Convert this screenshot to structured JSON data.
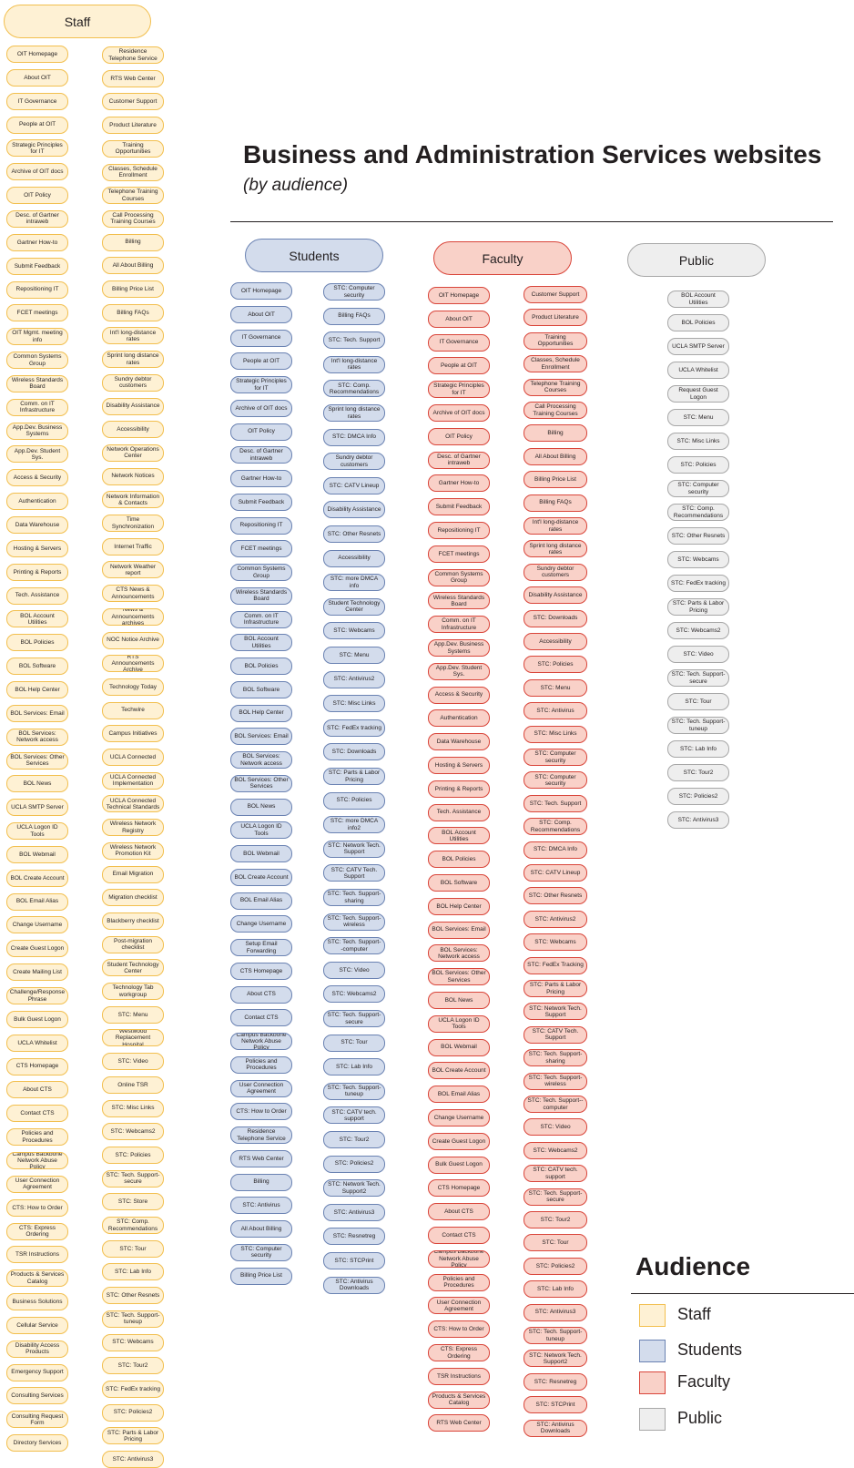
{
  "title": "Business and Administration Services websites",
  "subtitle": "(by audience)",
  "headers": {
    "staff": "Staff",
    "students": "Students",
    "faculty": "Faculty",
    "public": "Public"
  },
  "staff_col1": [
    "OIT Homepage",
    "About OIT",
    "IT Governance",
    "People at OIT",
    "Strategic Principles for IT",
    "Archive of OIT docs",
    "OIT Policy",
    "Desc. of Gartner intraweb",
    "Gartner How-to",
    "Submit Feedback",
    "Repositioning IT",
    "FCET meetings",
    "OIT Mgmt. meeting info",
    "Common Systems Group",
    "Wireless Standards Board",
    "Comm. on IT Infrastructure",
    "App.Dev. Business Systems",
    "App.Dev. Student Sys.",
    "Access & Security",
    "Authentication",
    "Data Warehouse",
    "Hosting & Servers",
    "Printing & Reports",
    "Tech. Assistance",
    "BOL Account Utilities",
    "BOL Policies",
    "BOL Software",
    "BOL Help Center",
    "BOL Services: Email",
    "BOL Services: Network access",
    "BOL Services: Other Services",
    "BOL News",
    "UCLA SMTP Server",
    "UCLA Logon ID Tools",
    "BOL Webmail",
    "BOL Create Account",
    "BOL Email Alias",
    "Change Username",
    "Create Guest Logon",
    "Create Mailing List",
    "Challenge/Response Phrase",
    "Bulk Guest Logon",
    "UCLA Whitelist",
    "CTS Homepage",
    "About CTS",
    "Contact CTS",
    "Policies and Procedures",
    "Campus Backbone Network Abuse Policy",
    "User Connection Agreement",
    "CTS: How to Order",
    "CTS: Express Ordering",
    "TSR Instructions",
    "Products & Services Catalog",
    "Business Solutions",
    "Cellular Service",
    "Disability Access Products",
    "Emergency Support",
    "Consulting Services",
    "Consulting Request Form",
    "Directory Services"
  ],
  "staff_col2": [
    "Residence Telephone Service",
    "RTS Web Center",
    "Customer Support",
    "Product Literature",
    "Training Opportunities",
    "Classes, Schedule Enrollment",
    "Telephone Training Courses",
    "Call Processing Training Courses",
    "Billing",
    "All About Billing",
    "Billing Price List",
    "Billing FAQs",
    "Int'l long-distance rates",
    "Sprint long distance rates",
    "Sundry debtor customers",
    "Disability Assistance",
    "Accessibility",
    "Network Operations Center",
    "Network Notices",
    "Network Information & Contacts",
    "Time Synchronization",
    "Internet Traffic",
    "Network Weather report",
    "CTS News & Announcements",
    "News & Announcements archives",
    "NOC Notice Archive",
    "RTS Announcements Archive",
    "Technology Today",
    "Techwire",
    "Campus Initiatives",
    "UCLA Connected",
    "UCLA Connected Implementation",
    "UCLA Connected Technical Standards",
    "Wireless Network Registry",
    "Wireless Network Promotion Kit",
    "Email Migration",
    "Migration checklist",
    "Blackberry checklist",
    "Post-migration checklist",
    "Student Technology Center",
    "Technology Tab workgroup",
    "STC: Menu",
    "Westwood Replacement Hospital",
    "STC: Video",
    "Online TSR",
    "STC: Misc Links",
    "STC: Webcams2",
    "STC: Policies",
    "STC: Tech. Support-secure",
    "STC: Store",
    "STC: Comp. Recommendations",
    "STC: Tour",
    "STC: Lab Info",
    "STC: Other Resnets",
    "STC: Tech. Support-tuneup",
    "STC: Webcams",
    "STC: Tour2",
    "STC: FedEx tracking",
    "STC: Policies2",
    "STC: Parts & Labor Pricing",
    "STC: Antivirus3"
  ],
  "students_col1": [
    "OIT Homepage",
    "About OIT",
    "IT Governance",
    "People at OIT",
    "Strategic Principles for IT",
    "Archive of OIT docs",
    "OIT Policy",
    "Desc. of Gartner intraweb",
    "Gartner How-to",
    "Submit Feedback",
    "Repositioning IT",
    "FCET meetings",
    "Common Systems Group",
    "Wireless Standards Board",
    "Comm. on IT Infrastructure",
    "BOL Account Utilities",
    "BOL Policies",
    "BOL Software",
    "BOL Help Center",
    "BOL Services: Email",
    "BOL Services: Network access",
    "BOL Services: Other Services",
    "BOL News",
    "UCLA Logon ID Tools",
    "BOL Webmail",
    "BOL Create Account",
    "BOL Email Alias",
    "Change Username",
    "Setup Email Forwarding",
    "CTS Homepage",
    "About CTS",
    "Contact CTS",
    "Campus Backbone Network Abuse Policy",
    "Policies and Procedures",
    "User Connection Agreement",
    "CTS: How to Order",
    "Residence Telephone Service",
    "RTS Web Center",
    "Billing",
    "STC: Antivirus",
    "All About Billing",
    "STC: Computer security",
    "Billing Price List"
  ],
  "students_col2": [
    "STC: Computer security",
    "Billing FAQs",
    "STC: Tech. Support",
    "Int'l long-distance rates",
    "STC: Comp. Recommendations",
    "Sprint long distance rates",
    "STC: DMCA Info",
    "Sundry debtor customers",
    "STC: CATV Lineup",
    "Disability Assistance",
    "STC: Other Resnets",
    "Accessibility",
    "STC: more DMCA info",
    "Student Technology Center",
    "STC: Webcams",
    "STC: Menu",
    "STC: Antivirus2",
    "STC: Misc Links",
    "STC: FedEx tracking",
    "STC: Downloads",
    "STC: Parts & Labor Pricing",
    "STC: Policies",
    "STC: more DMCA info2",
    "STC: Network Tech. Support",
    "STC: CATV Tech. Support",
    "STC: Tech. Support-sharing",
    "STC: Tech. Support-wireless",
    "STC: Tech. Support--computer",
    "STC: Video",
    "STC: Webcams2",
    "STC: Tech. Support-secure",
    "STC: Tour",
    "STC: Lab Info",
    "STC: Tech. Support-tuneup",
    "STC: CATV tech. support",
    "STC: Tour2",
    "STC: Policies2",
    "STC: Network Tech. Support2",
    "STC: Antivirus3",
    "STC: Resnetreg",
    "STC: STCPrint",
    "STC: Antivirus Downloads"
  ],
  "faculty_col1": [
    "OIT Homepage",
    "About OIT",
    "IT Governance",
    "People at OIT",
    "Strategic Principles for IT",
    "Archive of OIT docs",
    "OIT Policy",
    "Desc. of Gartner intraweb",
    "Gartner How-to",
    "Submit Feedback",
    "Repositioning IT",
    "FCET meetings",
    "Common Systems Group",
    "Wireless Standards Board",
    "Comm. on IT Infrastructure",
    "App.Dev. Business Systems",
    "App.Dev. Student Sys.",
    "Access & Security",
    "Authentication",
    "Data Warehouse",
    "Hosting & Servers",
    "Printing & Reports",
    "Tech. Assistance",
    "BOL Account Utilities",
    "BOL Policies",
    "BOL Software",
    "BOL Help Center",
    "BOL Services: Email",
    "BOL Services: Network access",
    "BOL Services: Other Services",
    "BOL News",
    "UCLA Logon ID Tools",
    "BOL Webmail",
    "BOL Create Account",
    "BOL Email Alias",
    "Change Username",
    "Create Guest Logon",
    "Bulk Guest Logon",
    "CTS Homepage",
    "About CTS",
    "Contact CTS",
    "Campus Backbone Network Abuse Policy",
    "Policies and Procedures",
    "User Connection Agreement",
    "CTS: How to Order",
    "CTS: Express Ordering",
    "TSR Instructions",
    "Products & Services Catalog",
    "RTS Web Center"
  ],
  "faculty_col2": [
    "Customer Support",
    "Product Literature",
    "Training Opportunities",
    "Classes, Schedule Enrollment",
    "Telephone Training Courses",
    "Call Processing Training Courses",
    "Billing",
    "All About Billing",
    "Billing Price List",
    "Billing FAQs",
    "Int'l long-distance rates",
    "Sprint long distance rates",
    "Sundry debtor customers",
    "Disability Assistance",
    "STC: Downloads",
    "Accessibility",
    "STC: Policies",
    "STC: Menu",
    "STC: Antivirus",
    "STC: Misc Links",
    "STC: Computer security",
    "STC: Computer security",
    "STC: Tech. Support",
    "STC: Comp. Recommendations",
    "STC: DMCA Info",
    "STC: CATV Lineup",
    "STC: Other Resnets",
    "STC: Antivirus2",
    "STC: Webcams",
    "STC: FedEx Tracking",
    "STC: Parts & Labor Pricing",
    "STC: Network Tech. Support",
    "STC: CATV Tech. Support",
    "STC: Tech. Support-sharing",
    "STC: Tech. Support-wireless",
    "STC: Tech. Support--computer",
    "STC: Video",
    "STC: Webcams2",
    "STC: CATV tech. support",
    "STC: Tech. Support-secure",
    "STC: Tour2",
    "STC: Tour",
    "STC: Policies2",
    "STC: Lab Info",
    "STC: Antivirus3",
    "STC: Tech. Support-tuneup",
    "STC: Network Tech. Support2",
    "STC: Resnetreg",
    "STC: STCPrint",
    "STC: Antivirus Downloads"
  ],
  "public_col": [
    "BOL Account Utilities",
    "BOL Policies",
    "UCLA SMTP Server",
    "UCLA Whitelist",
    "Request Guest Logon",
    "STC: Menu",
    "STC: Misc Links",
    "STC: Policies",
    "STC: Computer security",
    "STC: Comp. Recommendations",
    "STC: Other Resnets",
    "STC: Webcams",
    "STC: FedEx tracking",
    "STC: Parts & Labor Pricing",
    "STC: Webcams2",
    "STC: Video",
    "STC: Tech. Support-secure",
    "STC: Tour",
    "STC: Tech. Support-tuneup",
    "STC: Lab Info",
    "STC: Tour2",
    "STC: Policies2",
    "STC: Antivirus3"
  ],
  "legend": {
    "title": "Audience",
    "items": [
      {
        "label": "Staff",
        "fill": "#fef1d4",
        "stroke": "#f2bf4e"
      },
      {
        "label": "Students",
        "fill": "#d3dcec",
        "stroke": "#6a82b2"
      },
      {
        "label": "Faculty",
        "fill": "#f9d1c8",
        "stroke": "#d9453a"
      },
      {
        "label": "Public",
        "fill": "#eeeeee",
        "stroke": "#a7a7a7"
      }
    ]
  }
}
